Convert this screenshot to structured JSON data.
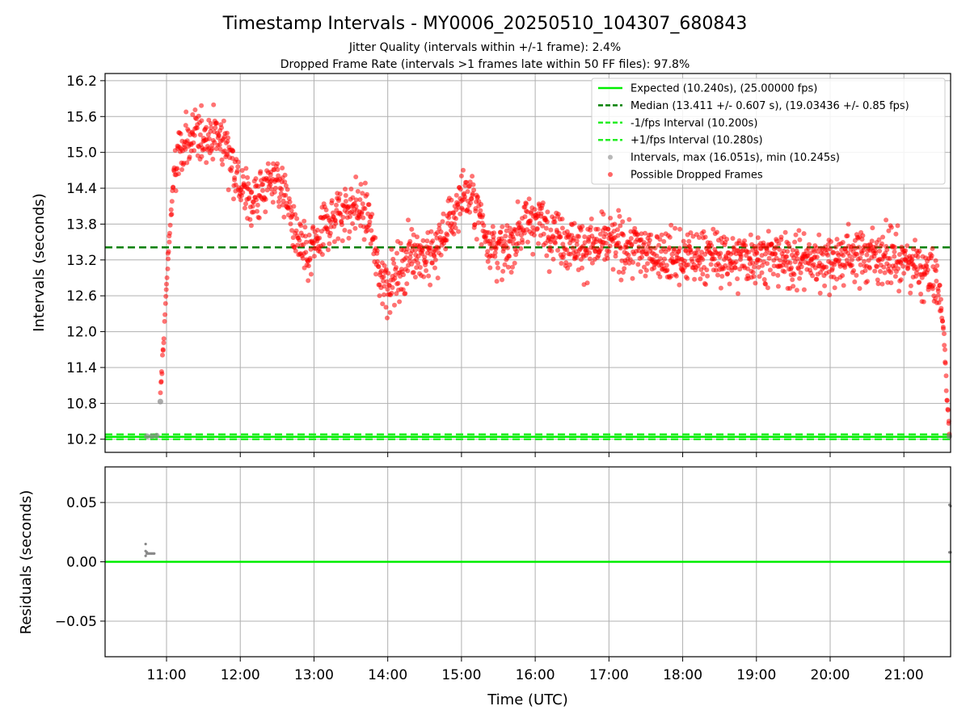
{
  "title": "Timestamp Intervals - MY0006_20250510_104307_680843",
  "subtitle_1": "Jitter Quality (intervals within +/-1 frame): 2.4%",
  "subtitle_2": "Dropped Frame Rate (intervals >1 frames late within 50 FF files): 97.8%",
  "colors": {
    "expected": "#00ee00",
    "median": "#008000",
    "fps_interval": "#22ee22",
    "intervals": "#888888",
    "dropped": "#ff0000"
  },
  "chart_data": [
    {
      "type": "scatter",
      "panel": "top",
      "ylabel": "Intervals (seconds)",
      "xlabel": "",
      "xlim": [
        "10:10",
        "21:38"
      ],
      "ylim": [
        9.98,
        16.32
      ],
      "grid": true,
      "legend_position": "top-right",
      "x_ticks": [
        "11:00",
        "12:00",
        "13:00",
        "14:00",
        "15:00",
        "16:00",
        "17:00",
        "18:00",
        "19:00",
        "20:00",
        "21:00"
      ],
      "y_ticks": [
        "10.2",
        "10.8",
        "11.4",
        "12.0",
        "12.6",
        "13.2",
        "13.8",
        "14.4",
        "15.0",
        "15.6",
        "16.2"
      ],
      "legend": [
        "Expected (10.240s), (25.00000 fps)",
        "Median (13.411 +/- 0.607 s), (19.03436 +/- 0.85 fps)",
        "-1/fps Interval (10.200s)",
        "+1/fps Interval (10.280s)",
        "Intervals, max (16.051s), min (10.245s)",
        "Possible Dropped Frames"
      ],
      "reference_lines": {
        "expected": 10.24,
        "median": 13.411,
        "minus_1_fps": 10.2,
        "plus_1_fps": 10.28
      },
      "series": [
        {
          "name": "Intervals, max (16.051s), min (10.245s)",
          "points": [
            [
              "10:44",
              10.25
            ],
            [
              "10:48",
              10.25
            ],
            [
              "10:52",
              10.26
            ],
            [
              "10:55",
              10.83
            ],
            [
              "21:37",
              10.25
            ]
          ]
        },
        {
          "name": "Possible Dropped Frames",
          "trend": [
            [
              "10:55",
              10.9
            ],
            [
              "10:58",
              12.0
            ],
            [
              "11:02",
              13.5
            ],
            [
              "11:06",
              14.6
            ],
            [
              "11:12",
              15.1
            ],
            [
              "11:20",
              15.2
            ],
            [
              "11:30",
              15.3
            ],
            [
              "11:40",
              15.3
            ],
            [
              "11:50",
              15.1
            ],
            [
              "12:00",
              14.4
            ],
            [
              "12:10",
              14.2
            ],
            [
              "12:20",
              14.4
            ],
            [
              "12:30",
              14.6
            ],
            [
              "12:38",
              14.2
            ],
            [
              "12:45",
              13.6
            ],
            [
              "12:55",
              13.2
            ],
            [
              "13:00",
              13.4
            ],
            [
              "13:10",
              13.8
            ],
            [
              "13:20",
              14.0
            ],
            [
              "13:35",
              14.1
            ],
            [
              "13:45",
              13.9
            ],
            [
              "13:52",
              13.0
            ],
            [
              "14:00",
              12.8
            ],
            [
              "14:10",
              13.0
            ],
            [
              "14:20",
              13.4
            ],
            [
              "14:35",
              13.2
            ],
            [
              "14:45",
              13.6
            ],
            [
              "14:55",
              14.0
            ],
            [
              "15:00",
              14.3
            ],
            [
              "15:10",
              14.2
            ],
            [
              "15:20",
              13.6
            ],
            [
              "15:35",
              13.3
            ],
            [
              "15:50",
              13.8
            ],
            [
              "16:00",
              13.9
            ],
            [
              "16:20",
              13.6
            ],
            [
              "16:40",
              13.4
            ],
            [
              "17:00",
              13.5
            ],
            [
              "17:20",
              13.4
            ],
            [
              "17:40",
              13.3
            ],
            [
              "18:00",
              13.2
            ],
            [
              "18:20",
              13.3
            ],
            [
              "18:40",
              13.2
            ],
            [
              "19:00",
              13.3
            ],
            [
              "19:20",
              13.2
            ],
            [
              "19:40",
              13.2
            ],
            [
              "20:00",
              13.2
            ],
            [
              "20:20",
              13.3
            ],
            [
              "20:40",
              13.3
            ],
            [
              "21:00",
              13.2
            ],
            [
              "21:15",
              13.0
            ],
            [
              "21:25",
              12.9
            ],
            [
              "21:30",
              12.5
            ],
            [
              "21:33",
              11.8
            ],
            [
              "21:35",
              11.0
            ],
            [
              "21:36",
              10.6
            ],
            [
              "21:37",
              10.3
            ]
          ]
        }
      ]
    },
    {
      "type": "scatter",
      "panel": "bottom",
      "ylabel": "Residuals (seconds)",
      "xlabel": "Time (UTC)",
      "xlim": [
        "10:10",
        "21:38"
      ],
      "ylim": [
        -0.08,
        0.08
      ],
      "grid": true,
      "x_ticks": [
        "11:00",
        "12:00",
        "13:00",
        "14:00",
        "15:00",
        "16:00",
        "17:00",
        "18:00",
        "19:00",
        "20:00",
        "21:00"
      ],
      "y_ticks": [
        "0.05",
        "0.00",
        "−0.05"
      ],
      "zero_line": 0.0,
      "series": [
        {
          "name": "Residuals",
          "points": [
            [
              "10:43",
              0.015
            ],
            [
              "10:43",
              0.009
            ],
            [
              "10:44",
              0.008
            ],
            [
              "10:44",
              0.007
            ],
            [
              "10:45",
              0.007
            ],
            [
              "10:46",
              0.007
            ],
            [
              "10:47",
              0.007
            ],
            [
              "10:48",
              0.007
            ],
            [
              "10:49",
              0.007
            ],
            [
              "10:50",
              0.007
            ],
            [
              "10:43",
              0.005
            ],
            [
              "21:37",
              0.048
            ],
            [
              "21:38",
              0.047
            ],
            [
              "21:37",
              0.008
            ],
            [
              "21:38",
              0.008
            ]
          ]
        }
      ]
    }
  ]
}
